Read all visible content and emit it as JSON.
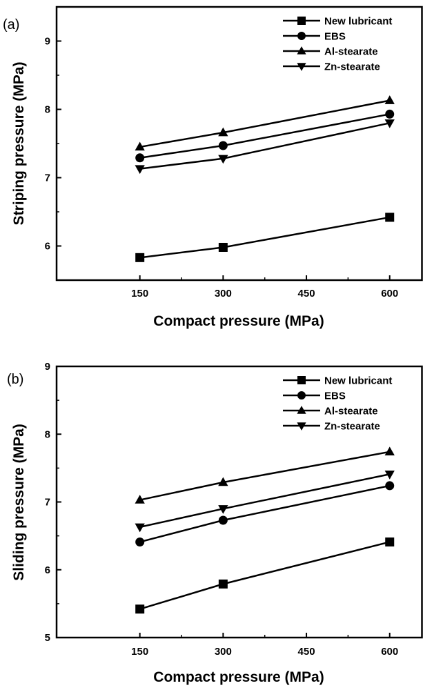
{
  "chart_data": [
    {
      "type": "line",
      "panel_label": "(a)",
      "x": [
        150,
        300,
        600
      ],
      "xticks": [
        150,
        300,
        450,
        600
      ],
      "xlim": [
        0,
        660
      ],
      "xlabel": "Compact pressure (MPa)",
      "ylabel": "Striping pressure (MPa)",
      "yticks": [
        6,
        7,
        8,
        9
      ],
      "ylim": [
        5.5,
        9.5
      ],
      "legend_position": "top-right",
      "grid": false,
      "series": [
        {
          "name": "New lubricant",
          "marker": "square",
          "values": [
            5.83,
            5.98,
            6.42
          ]
        },
        {
          "name": "EBS",
          "marker": "circle",
          "values": [
            7.29,
            7.47,
            7.93
          ]
        },
        {
          "name": "Al-stearate",
          "marker": "triangle-up",
          "values": [
            7.45,
            7.66,
            8.13
          ]
        },
        {
          "name": "Zn-stearate",
          "marker": "triangle-down",
          "values": [
            7.13,
            7.28,
            7.8
          ]
        }
      ]
    },
    {
      "type": "line",
      "panel_label": "(b)",
      "x": [
        150,
        300,
        600
      ],
      "xticks": [
        150,
        300,
        450,
        600
      ],
      "xlim": [
        0,
        660
      ],
      "xlabel": "Compact pressure (MPa)",
      "ylabel": "Sliding pressure (MPa)",
      "yticks": [
        5,
        6,
        7,
        8,
        9
      ],
      "ylim": [
        5,
        9
      ],
      "legend_position": "top-right",
      "grid": false,
      "series": [
        {
          "name": "New lubricant",
          "marker": "square",
          "values": [
            5.42,
            5.79,
            6.41
          ]
        },
        {
          "name": "EBS",
          "marker": "circle",
          "values": [
            6.41,
            6.73,
            7.24
          ]
        },
        {
          "name": "Al-stearate",
          "marker": "triangle-up",
          "values": [
            7.03,
            7.29,
            7.74
          ]
        },
        {
          "name": "Zn-stearate",
          "marker": "triangle-down",
          "values": [
            6.63,
            6.9,
            7.41
          ]
        }
      ]
    }
  ]
}
